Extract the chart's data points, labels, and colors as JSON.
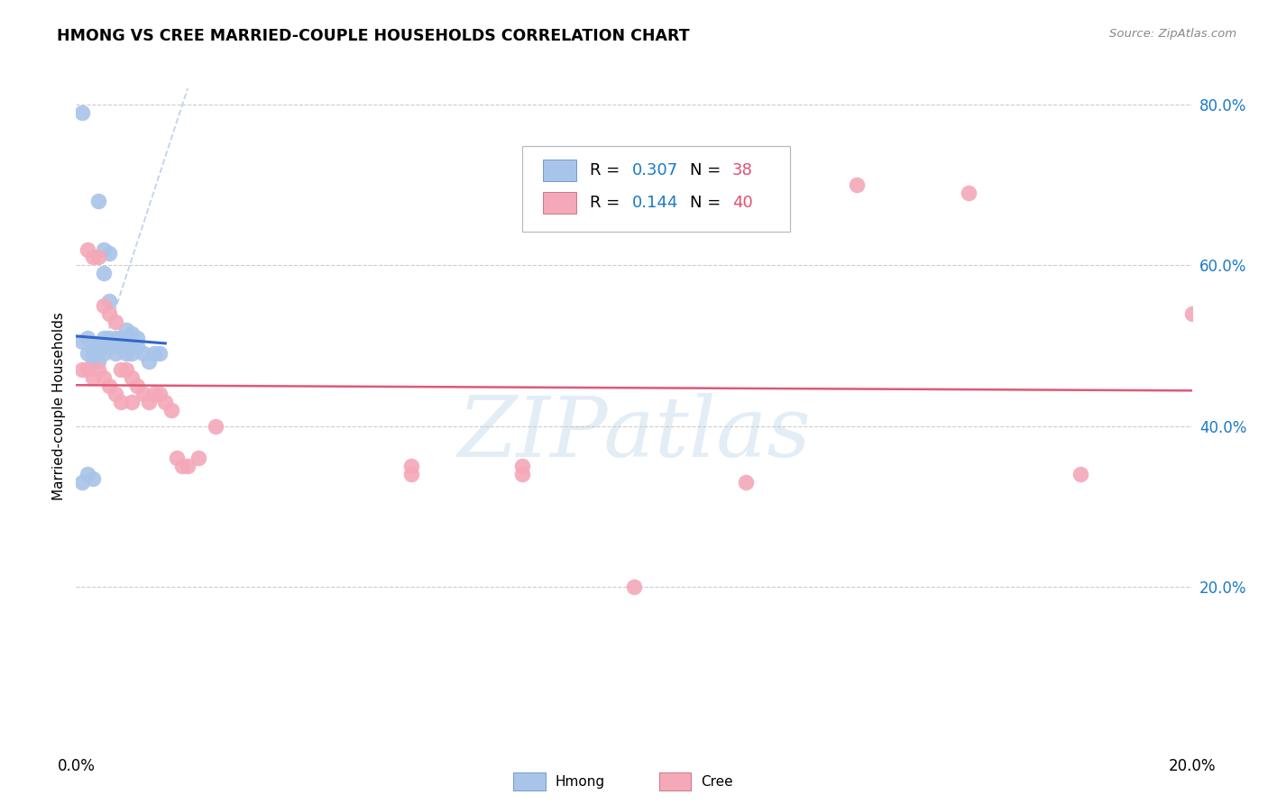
{
  "title": "HMONG VS CREE MARRIED-COUPLE HOUSEHOLDS CORRELATION CHART",
  "source": "Source: ZipAtlas.com",
  "xlabel": "",
  "ylabel": "Married-couple Households",
  "xlim": [
    0.0,
    0.2
  ],
  "ylim": [
    0.0,
    0.85
  ],
  "hmong_R": 0.307,
  "hmong_N": 38,
  "cree_R": 0.144,
  "cree_N": 40,
  "hmong_color": "#a8c4e8",
  "cree_color": "#f4a8b8",
  "hmong_line_color": "#3366cc",
  "cree_line_color": "#e05878",
  "hmong_dash_color": "#b0c8e8",
  "legend_r_color": "#1a7ac7",
  "legend_n_color": "#e05070",
  "hmong_x": [
    0.001,
    0.001,
    0.002,
    0.002,
    0.002,
    0.003,
    0.003,
    0.003,
    0.004,
    0.004,
    0.004,
    0.005,
    0.005,
    0.005,
    0.005,
    0.005,
    0.006,
    0.006,
    0.006,
    0.007,
    0.007,
    0.007,
    0.008,
    0.008,
    0.009,
    0.009,
    0.009,
    0.01,
    0.01,
    0.01,
    0.011,
    0.011,
    0.012,
    0.013,
    0.014,
    0.015,
    0.001,
    0.003
  ],
  "hmong_y": [
    0.79,
    0.505,
    0.51,
    0.49,
    0.34,
    0.5,
    0.49,
    0.48,
    0.68,
    0.5,
    0.48,
    0.62,
    0.59,
    0.51,
    0.5,
    0.49,
    0.615,
    0.555,
    0.51,
    0.51,
    0.5,
    0.49,
    0.51,
    0.5,
    0.52,
    0.51,
    0.49,
    0.515,
    0.5,
    0.49,
    0.51,
    0.5,
    0.49,
    0.48,
    0.49,
    0.49,
    0.33,
    0.335
  ],
  "cree_x": [
    0.001,
    0.002,
    0.002,
    0.003,
    0.003,
    0.004,
    0.004,
    0.005,
    0.005,
    0.006,
    0.006,
    0.007,
    0.007,
    0.008,
    0.008,
    0.009,
    0.01,
    0.01,
    0.011,
    0.012,
    0.013,
    0.014,
    0.015,
    0.016,
    0.017,
    0.018,
    0.019,
    0.02,
    0.022,
    0.025,
    0.06,
    0.06,
    0.08,
    0.08,
    0.1,
    0.12,
    0.14,
    0.16,
    0.18,
    0.2
  ],
  "cree_y": [
    0.47,
    0.62,
    0.47,
    0.61,
    0.46,
    0.61,
    0.47,
    0.55,
    0.46,
    0.54,
    0.45,
    0.53,
    0.44,
    0.47,
    0.43,
    0.47,
    0.46,
    0.43,
    0.45,
    0.44,
    0.43,
    0.44,
    0.44,
    0.43,
    0.42,
    0.36,
    0.35,
    0.35,
    0.36,
    0.4,
    0.35,
    0.34,
    0.34,
    0.35,
    0.2,
    0.33,
    0.7,
    0.69,
    0.34,
    0.54
  ],
  "watermark_text": "ZIPatlas",
  "background_color": "#ffffff",
  "grid_color": "#cccccc",
  "grid_lw": 0.8
}
